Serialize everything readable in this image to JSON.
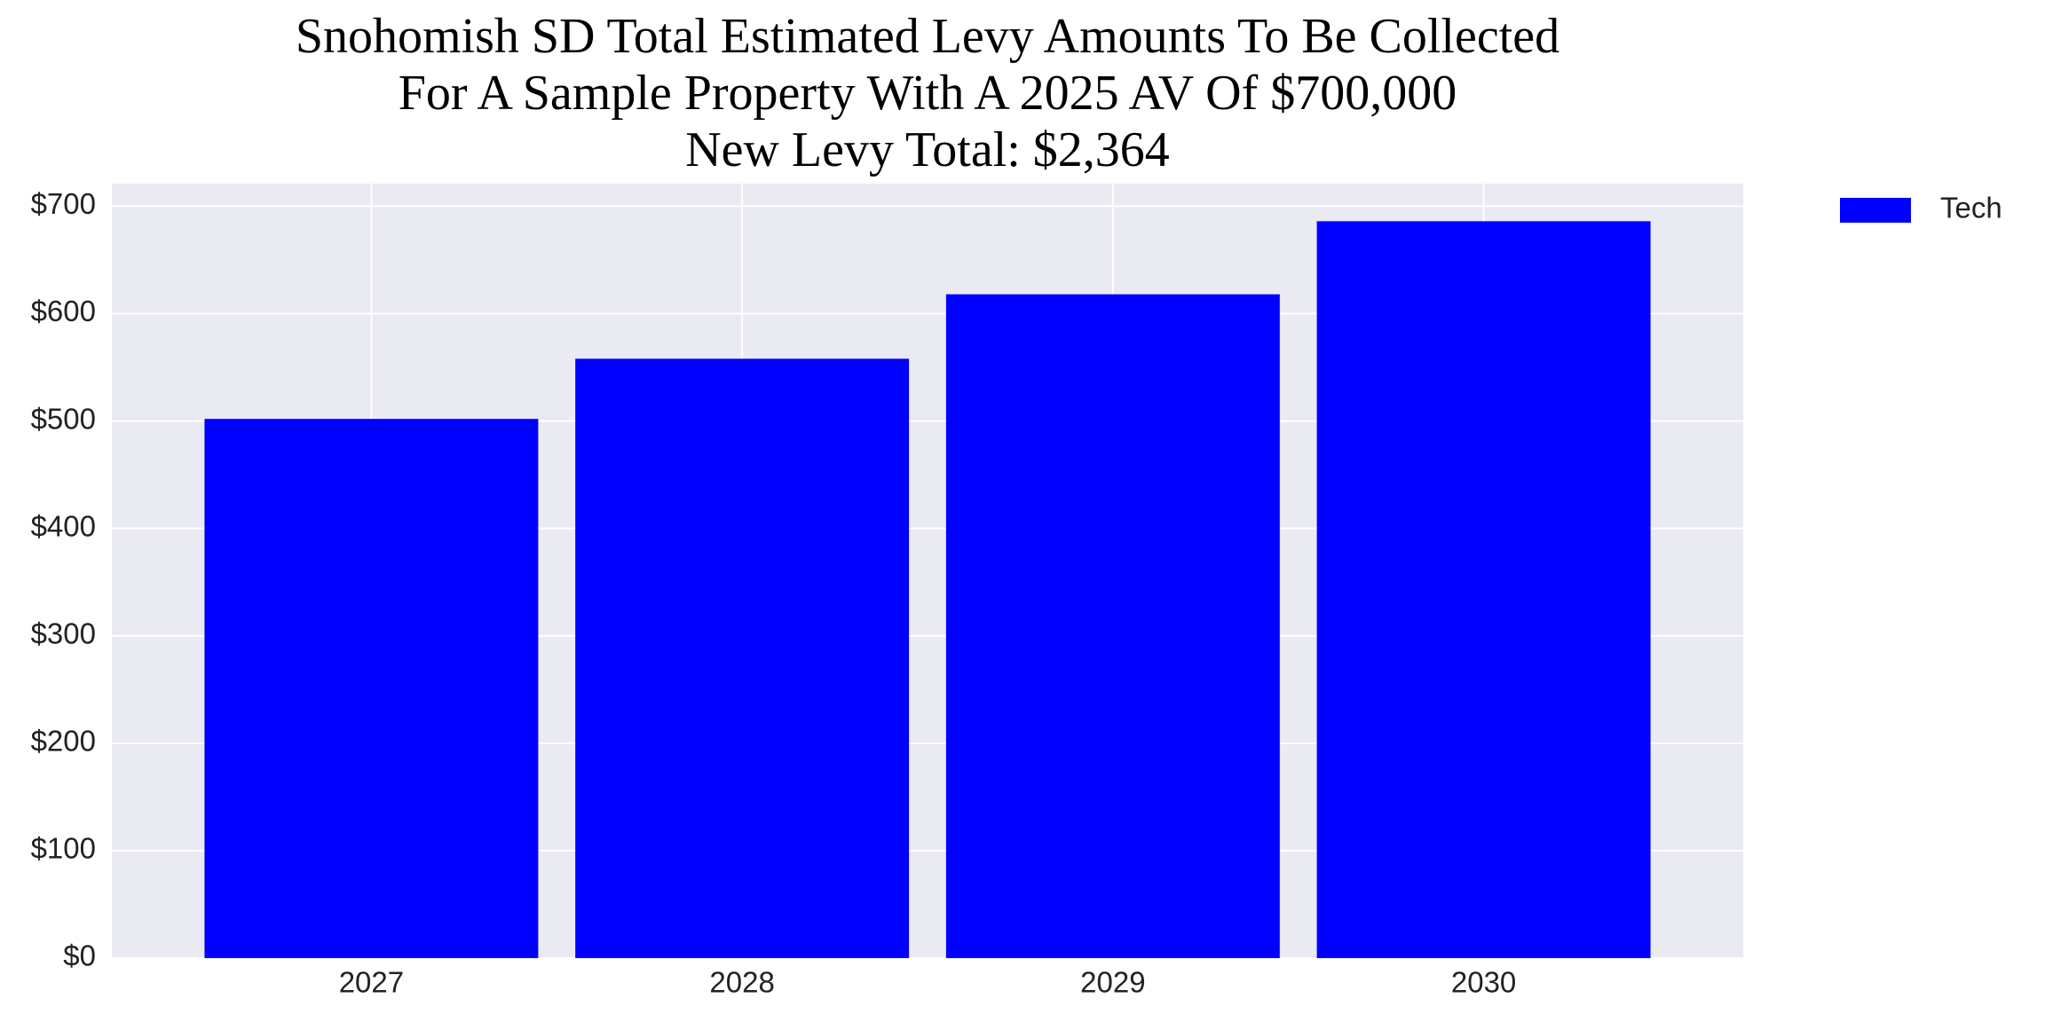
{
  "chart_data": {
    "type": "bar",
    "title": [
      "Snohomish SD Total Estimated Levy Amounts To Be Collected",
      "For A Sample Property With A 2025 AV Of $700,000",
      "New Levy Total: $2,364"
    ],
    "categories": [
      "2027",
      "2028",
      "2029",
      "2030"
    ],
    "series": [
      {
        "name": "Tech",
        "color": "#0000ff",
        "values": [
          502,
          558,
          618,
          686
        ]
      }
    ],
    "ylim": [
      0,
      721
    ],
    "yticks": [
      {
        "value": 0,
        "label": "$0"
      },
      {
        "value": 100,
        "label": "$100"
      },
      {
        "value": 200,
        "label": "$200"
      },
      {
        "value": 300,
        "label": "$300"
      },
      {
        "value": 400,
        "label": "$400"
      },
      {
        "value": 500,
        "label": "$500"
      },
      {
        "value": 600,
        "label": "$600"
      },
      {
        "value": 700,
        "label": "$700"
      }
    ],
    "grid": true,
    "legend": "outside-right"
  }
}
